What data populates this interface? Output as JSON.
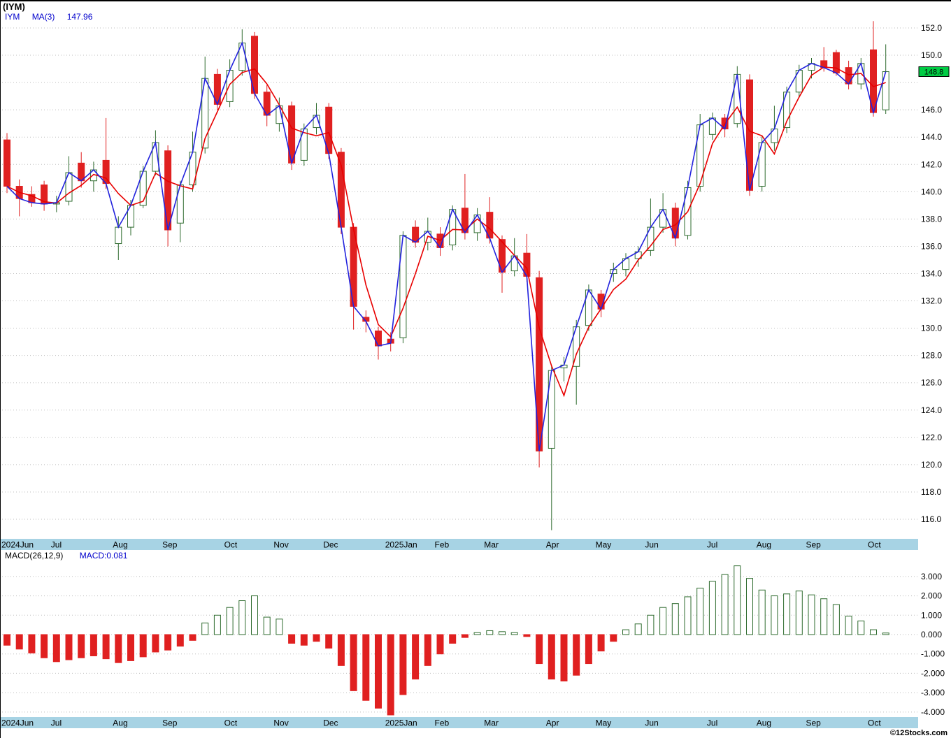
{
  "title": "(IYM)",
  "legend": {
    "symbol": "IYM",
    "ma_label": "MA(3)",
    "ma_value": "147.96"
  },
  "price_axis": {
    "badge": "148.8",
    "badge_price": 148.8,
    "ticks": [
      152,
      150,
      148,
      146,
      144,
      142,
      140,
      138,
      136,
      134,
      132,
      130,
      128,
      126,
      124,
      122,
      120,
      118,
      116
    ],
    "hidden_labels": [
      148
    ]
  },
  "macd_panel": {
    "label": "MACD(26,12,9)",
    "value_label": "MACD:0.081",
    "ticks": [
      3,
      2,
      1,
      0,
      -1,
      -2,
      -3,
      -4
    ]
  },
  "months": [
    {
      "label": "2024Jun",
      "index": 0
    },
    {
      "label": "Jul",
      "index": 4
    },
    {
      "label": "Aug",
      "index": 9
    },
    {
      "label": "Sep",
      "index": 13
    },
    {
      "label": "Oct",
      "index": 18
    },
    {
      "label": "Nov",
      "index": 22
    },
    {
      "label": "Dec",
      "index": 26
    },
    {
      "label": "2025Jan",
      "index": 31
    },
    {
      "label": "Feb",
      "index": 35
    },
    {
      "label": "Mar",
      "index": 39
    },
    {
      "label": "Apr",
      "index": 44
    },
    {
      "label": "May",
      "index": 48
    },
    {
      "label": "Jun",
      "index": 52
    },
    {
      "label": "Jul",
      "index": 57
    },
    {
      "label": "Aug",
      "index": 61
    },
    {
      "label": "Sep",
      "index": 65
    },
    {
      "label": "Oct",
      "index": 70
    }
  ],
  "credit": "©12Stocks.com",
  "colors": {
    "up": "#2e6b2e",
    "down": "#e02020",
    "ma_line": "#e80000",
    "close_line": "#2222dd",
    "band": "#a7d3e4",
    "badge_bg": "#00cc44",
    "grid": "#bdbdbd",
    "legend_blue": "#0000cc"
  },
  "chart_data": {
    "type": "candlestick",
    "symbol": "IYM",
    "interval": "weekly",
    "period": "2024-06 to 2025-10",
    "title": "(IYM)",
    "price_ylim": [
      114.5,
      153.2
    ],
    "macd_ylim": [
      -4.6,
      3.9
    ],
    "overlays": [
      {
        "name": "close price line",
        "color": "blue"
      },
      {
        "name": "MA(3)",
        "color": "red",
        "last_value": 147.96
      }
    ],
    "last_close": 148.8,
    "macd_last": 0.081,
    "weeks": [
      "2024-06-03",
      "2024-06-10",
      "2024-06-17",
      "2024-06-24",
      "2024-07-01",
      "2024-07-08",
      "2024-07-15",
      "2024-07-22",
      "2024-07-29",
      "2024-08-05",
      "2024-08-12",
      "2024-08-19",
      "2024-08-26",
      "2024-09-02",
      "2024-09-09",
      "2024-09-16",
      "2024-09-23",
      "2024-09-30",
      "2024-10-07",
      "2024-10-14",
      "2024-10-21",
      "2024-10-28",
      "2024-11-04",
      "2024-11-11",
      "2024-11-18",
      "2024-11-25",
      "2024-12-02",
      "2024-12-09",
      "2024-12-16",
      "2024-12-23",
      "2024-12-30",
      "2025-01-06",
      "2025-01-13",
      "2025-01-20",
      "2025-01-27",
      "2025-02-03",
      "2025-02-10",
      "2025-02-17",
      "2025-02-24",
      "2025-03-03",
      "2025-03-10",
      "2025-03-17",
      "2025-03-24",
      "2025-03-31",
      "2025-04-07",
      "2025-04-14",
      "2025-04-21",
      "2025-04-28",
      "2025-05-05",
      "2025-05-12",
      "2025-05-19",
      "2025-05-26",
      "2025-06-02",
      "2025-06-09",
      "2025-06-16",
      "2025-06-23",
      "2025-06-30",
      "2025-07-07",
      "2025-07-14",
      "2025-07-21",
      "2025-07-28",
      "2025-08-04",
      "2025-08-11",
      "2025-08-18",
      "2025-08-25",
      "2025-09-02",
      "2025-09-08",
      "2025-09-15",
      "2025-09-22",
      "2025-09-29",
      "2025-10-06",
      "2025-10-13"
    ],
    "open": [
      143.8,
      140.4,
      139.8,
      140.5,
      139.1,
      139.3,
      142.1,
      140.8,
      142.3,
      136.2,
      137.4,
      139.0,
      141.5,
      143.0,
      137.7,
      140.5,
      143.2,
      148.6,
      146.6,
      148.9,
      151.4,
      147.3,
      145.0,
      146.3,
      142.3,
      144.7,
      146.2,
      142.9,
      137.4,
      130.8,
      129.8,
      129.2,
      129.3,
      137.4,
      136.3,
      136.9,
      136.1,
      138.8,
      137.0,
      138.5,
      136.5,
      134.2,
      135.5,
      133.7,
      121.2,
      127.1,
      127.2,
      130.2,
      132.5,
      134.0,
      134.3,
      135.1,
      135.7,
      137.4,
      138.8,
      136.8,
      140.4,
      144.2,
      145.4,
      145.0,
      148.2,
      140.4,
      143.6,
      144.7,
      147.3,
      148.9,
      149.6,
      150.2,
      149.1,
      147.9,
      150.4,
      146.0
    ],
    "high": [
      144.3,
      140.9,
      140.4,
      140.8,
      139.7,
      142.6,
      142.9,
      142.2,
      145.4,
      138.2,
      139.4,
      141.9,
      144.5,
      143.4,
      140.8,
      144.4,
      149.9,
      149.0,
      149.7,
      151.9,
      151.7,
      147.8,
      146.9,
      146.6,
      145.0,
      146.5,
      146.5,
      143.2,
      137.7,
      131.3,
      130.1,
      129.7,
      137.1,
      137.9,
      138.1,
      137.4,
      139.0,
      141.3,
      138.8,
      139.6,
      136.8,
      136.6,
      136.9,
      134.2,
      127.2,
      127.9,
      130.6,
      133.2,
      132.8,
      134.8,
      135.5,
      136.0,
      139.5,
      139.9,
      139.2,
      140.8,
      145.7,
      145.8,
      145.7,
      149.2,
      148.6,
      144.1,
      146.3,
      147.7,
      149.3,
      149.8,
      150.6,
      150.4,
      149.6,
      149.8,
      152.5,
      150.8
    ],
    "low": [
      139.9,
      138.2,
      138.9,
      138.6,
      138.5,
      139.0,
      140.3,
      140.0,
      140.2,
      135.0,
      136.8,
      138.8,
      141.2,
      136.0,
      136.3,
      140.0,
      142.8,
      146.0,
      146.2,
      148.5,
      146.8,
      144.8,
      144.4,
      141.6,
      141.9,
      144.2,
      142.4,
      136.9,
      129.9,
      129.7,
      127.7,
      128.3,
      128.9,
      135.9,
      135.7,
      135.3,
      135.7,
      136.5,
      136.4,
      136.2,
      132.6,
      133.8,
      133.4,
      119.8,
      115.2,
      126.1,
      124.4,
      129.8,
      130.8,
      133.4,
      133.8,
      134.5,
      135.3,
      137.0,
      136.0,
      136.5,
      140.0,
      143.8,
      144.0,
      144.7,
      139.7,
      140.0,
      143.0,
      144.3,
      146.9,
      148.3,
      148.8,
      148.5,
      147.5,
      147.5,
      145.5,
      145.7
    ],
    "close": [
      140.4,
      139.5,
      139.2,
      139.1,
      139.2,
      141.4,
      140.8,
      141.6,
      140.6,
      137.4,
      139.0,
      141.5,
      143.6,
      137.2,
      140.5,
      142.9,
      148.3,
      146.4,
      148.9,
      150.9,
      147.2,
      145.6,
      146.3,
      142.1,
      144.6,
      145.6,
      142.8,
      137.4,
      131.6,
      130.5,
      128.7,
      128.9,
      136.8,
      136.3,
      137.1,
      135.9,
      138.7,
      137.0,
      138.3,
      136.6,
      134.1,
      135.3,
      133.8,
      121.0,
      126.9,
      127.3,
      130.1,
      132.8,
      131.4,
      134.3,
      135.1,
      135.6,
      137.4,
      138.7,
      136.6,
      140.3,
      144.9,
      145.4,
      144.6,
      148.6,
      140.1,
      143.6,
      144.6,
      147.3,
      148.9,
      149.4,
      149.1,
      148.7,
      147.9,
      149.4,
      145.8,
      148.8
    ],
    "macd_hist": [
      -0.55,
      -0.75,
      -0.95,
      -1.2,
      -1.4,
      -1.3,
      -1.2,
      -1.1,
      -1.25,
      -1.45,
      -1.35,
      -1.15,
      -0.9,
      -0.8,
      -0.6,
      -0.3,
      0.6,
      1.0,
      1.4,
      1.75,
      2.0,
      0.9,
      0.8,
      -0.45,
      -0.55,
      -0.35,
      -0.7,
      -1.6,
      -2.9,
      -3.4,
      -3.8,
      -4.15,
      -3.1,
      -2.3,
      -1.6,
      -1.0,
      -0.45,
      -0.15,
      0.1,
      0.2,
      0.15,
      0.1,
      -0.1,
      -1.5,
      -2.3,
      -2.4,
      -2.1,
      -1.5,
      -0.85,
      -0.35,
      0.25,
      0.55,
      1.0,
      1.4,
      1.6,
      1.95,
      2.4,
      2.75,
      3.1,
      3.55,
      2.9,
      2.3,
      2.0,
      2.1,
      2.25,
      2.05,
      1.85,
      1.55,
      0.95,
      0.7,
      0.25,
      0.081
    ]
  }
}
